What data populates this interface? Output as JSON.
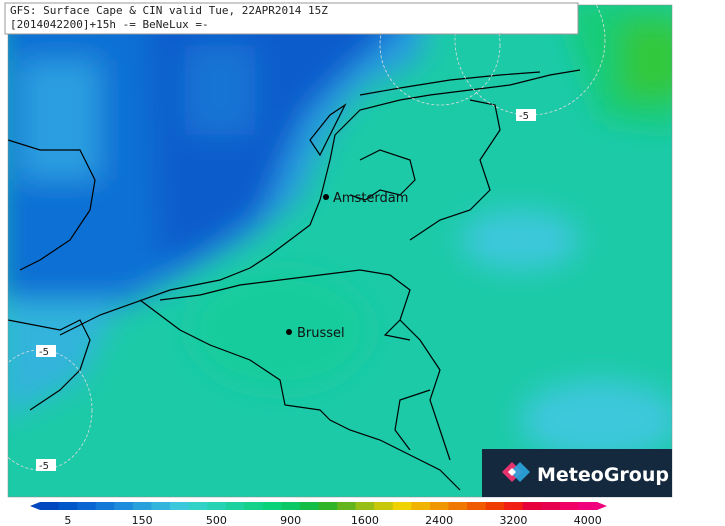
{
  "header": {
    "line1": "GFS: Surface Cape & CIN valid Tue, 22APR2014 15Z",
    "line2": "[2014042200]+15h -= BeNeLux =-"
  },
  "cities": [
    {
      "label": "Amsterdam"
    },
    {
      "label": "Brussel"
    }
  ],
  "contour_labels": [
    "-5",
    "-5",
    "-5"
  ],
  "logo": {
    "text": "MeteoGroup"
  },
  "colorbar": {
    "labels": [
      "5",
      "150",
      "500",
      "900",
      "1600",
      "2400",
      "3200",
      "4000"
    ],
    "colors": [
      "#0046be",
      "#0055c8",
      "#0a64d2",
      "#1478d7",
      "#1e8cdc",
      "#28a0dc",
      "#32b4dc",
      "#3cc8dc",
      "#32d2c8",
      "#28d2b4",
      "#1ed2a0",
      "#14d28c",
      "#0ad278",
      "#0ac864",
      "#14be46",
      "#32b428",
      "#64b41e",
      "#96be14",
      "#c8c80a",
      "#f0d200",
      "#f0b400",
      "#f09600",
      "#f07800",
      "#f05a00",
      "#f03c00",
      "#f01e14",
      "#e6003c",
      "#e60050",
      "#f00064",
      "#f0007d"
    ]
  }
}
